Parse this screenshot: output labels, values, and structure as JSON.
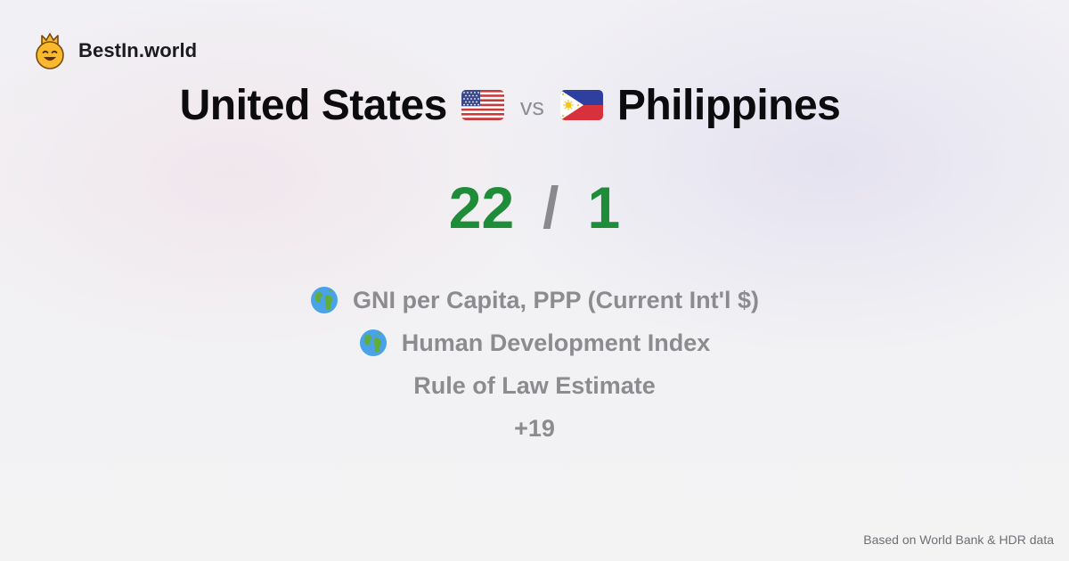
{
  "brand": {
    "name": "BestIn.world",
    "logo_icon": "crown-smiley-icon"
  },
  "comparison": {
    "left_country": "United States",
    "left_flag_icon": "us-flag-icon",
    "vs_label": "vs",
    "right_country": "Philippines",
    "right_flag_icon": "philippines-flag-icon"
  },
  "score": {
    "left": "22",
    "separator": "/",
    "right": "1",
    "color": "#1f8c3a"
  },
  "metrics": [
    {
      "label": "GNI per Capita, PPP (Current Int'l $)",
      "icon": "globe-icon"
    },
    {
      "label": "Human Development Index",
      "icon": "globe-icon"
    },
    {
      "label": "Rule of Law Estimate",
      "icon": ""
    },
    {
      "label": "+19",
      "icon": ""
    }
  ],
  "footer": {
    "source": "Based on World Bank & HDR data"
  }
}
